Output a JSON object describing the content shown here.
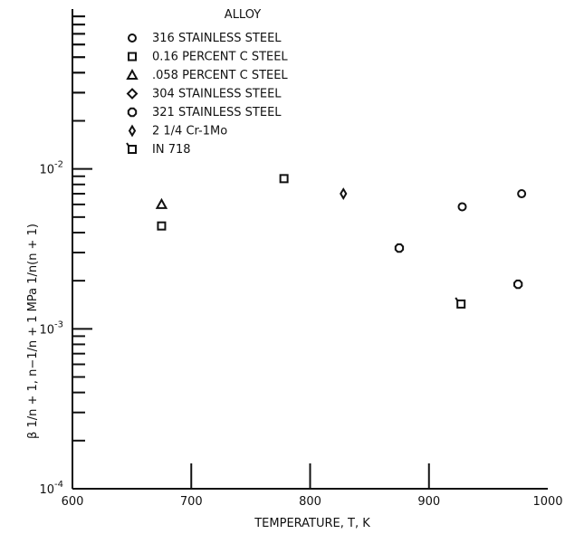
{
  "chart_data": {
    "type": "scatter",
    "title": "",
    "xlabel": "TEMPERATURE, T, K",
    "ylabel": "β 1/n + 1, n−1/n + 1 MPa 1/n(n + 1)",
    "xlim": [
      600,
      1000
    ],
    "ylim": [
      0.0001,
      0.1
    ],
    "yscale": "log",
    "xticks": [
      "600",
      "700",
      "800",
      "900",
      "1000"
    ],
    "yticks": [
      {
        "base": "10",
        "exp": "-4"
      },
      {
        "base": "10",
        "exp": "-3"
      },
      {
        "base": "10",
        "exp": "-2"
      }
    ],
    "grid": false,
    "legend": {
      "title": "ALLOY",
      "placement": "top-left"
    },
    "series": [
      {
        "name": "316 STAINLESS STEEL",
        "marker": "circle",
        "x": [
          928,
          978
        ],
        "y": [
          0.0058,
          0.007
        ]
      },
      {
        "name": "0.16 PERCENT C STEEL",
        "marker": "square",
        "x": [
          675,
          778
        ],
        "y": [
          0.0044,
          0.0087
        ]
      },
      {
        "name": ".058 PERCENT C STEEL",
        "marker": "triangle",
        "x": [
          675
        ],
        "y": [
          0.006
        ]
      },
      {
        "name": "304 STAINLESS STEEL",
        "marker": "diamond",
        "x": [],
        "y": []
      },
      {
        "name": "321 STAINLESS STEEL",
        "marker": "octagon",
        "x": [
          875,
          975
        ],
        "y": [
          0.0032,
          0.0019
        ]
      },
      {
        "name": "2 1/4 Cr-1Mo",
        "marker": "small-diamond",
        "x": [
          828
        ],
        "y": [
          0.007
        ]
      },
      {
        "name": "IN 718",
        "marker": "flagged-square",
        "x": [
          927
        ],
        "y": [
          0.00143
        ]
      }
    ]
  }
}
